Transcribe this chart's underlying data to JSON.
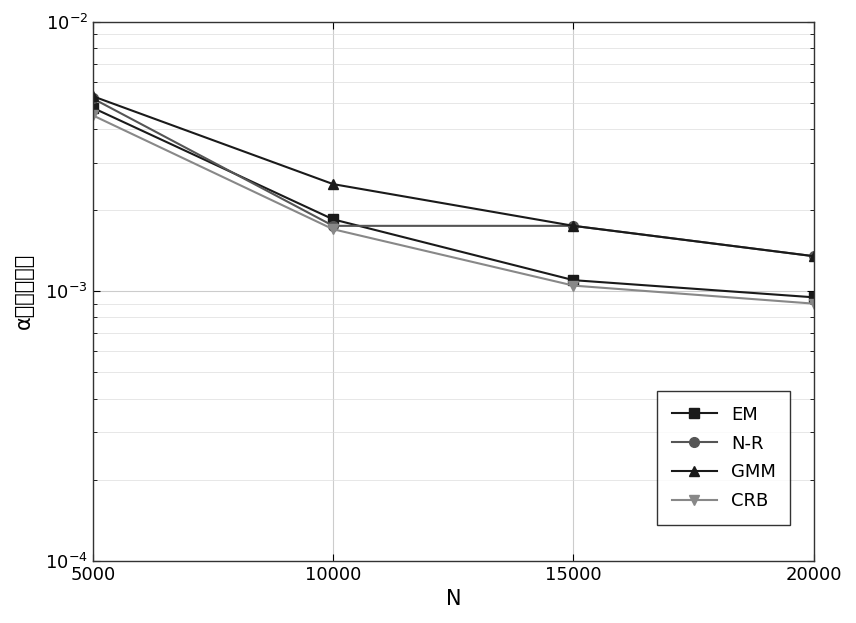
{
  "x": [
    5000,
    10000,
    15000,
    20000
  ],
  "EM": [
    0.0048,
    0.00185,
    0.0011,
    0.00095
  ],
  "NR": [
    0.0052,
    0.00175,
    0.00175,
    0.00135
  ],
  "GMM": [
    0.0053,
    0.0025,
    0.00175,
    0.00135
  ],
  "CRB": [
    0.0045,
    0.0017,
    0.00105,
    0.0009
  ],
  "EM_color": "#1a1a1a",
  "NR_color": "#555555",
  "GMM_color": "#1a1a1a",
  "CRB_color": "#888888",
  "ylabel": "α的均方误差",
  "xlabel": "N",
  "ylim_min": 0.0001,
  "ylim_max": 0.01,
  "xlim_min": 5000,
  "xlim_max": 20000,
  "legend_labels": [
    "EM",
    "N-R",
    "GMM",
    "CRB"
  ],
  "linewidth": 1.5,
  "markersize": 7,
  "tick_fontsize": 13,
  "label_fontsize": 15,
  "legend_fontsize": 13
}
